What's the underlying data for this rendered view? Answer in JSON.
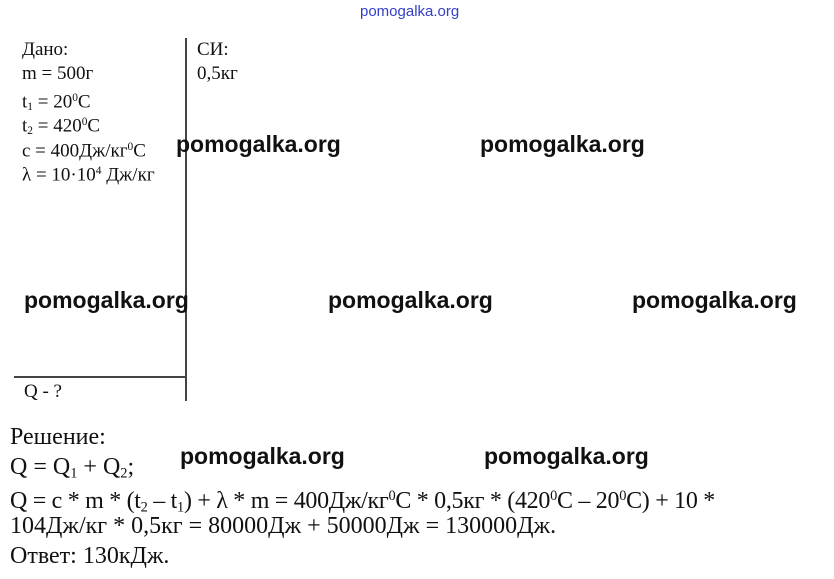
{
  "header": {
    "site": "pomogalka.org",
    "color": "#3340c8"
  },
  "watermark": "pomogalka.org",
  "given": {
    "title": "Дано:",
    "m": "m = 500г",
    "t1": {
      "a": "t",
      "sub": "1",
      "b": " = 20",
      "sup": "0",
      "c": "C"
    },
    "t2": {
      "a": "t",
      "sub": "2",
      "b": " = 420",
      "sup": "0",
      "c": "C"
    },
    "c": {
      "a": "c = 400Дж/кг",
      "sup": "0",
      "b": "C"
    },
    "lambda": {
      "a": "λ = 10·10",
      "sup": "4",
      "b": " Дж/кг"
    },
    "find": "Q  - ?"
  },
  "si": {
    "title": "СИ:",
    "m": "0,5кг"
  },
  "solution": {
    "title": "Решение:",
    "line1": {
      "a": "Q = Q",
      "s1": "1",
      "b": " + Q",
      "s2": "2",
      "c": ";"
    },
    "line2": {
      "a": "Q = c * m * (t",
      "s1": "2",
      "b": " – t",
      "s2": "1",
      "c": ") + λ * m = 400Дж/кг",
      "p1": "0",
      "d": "C * 0,5кг * (420",
      "p2": "0",
      "e": "C – 20",
      "p3": "0",
      "f": "C) + 10 *"
    },
    "line3": "104Дж/кг * 0,5кг = 80000Дж + 50000Дж = 130000Дж.",
    "answer": "Ответ: 130кДж."
  }
}
